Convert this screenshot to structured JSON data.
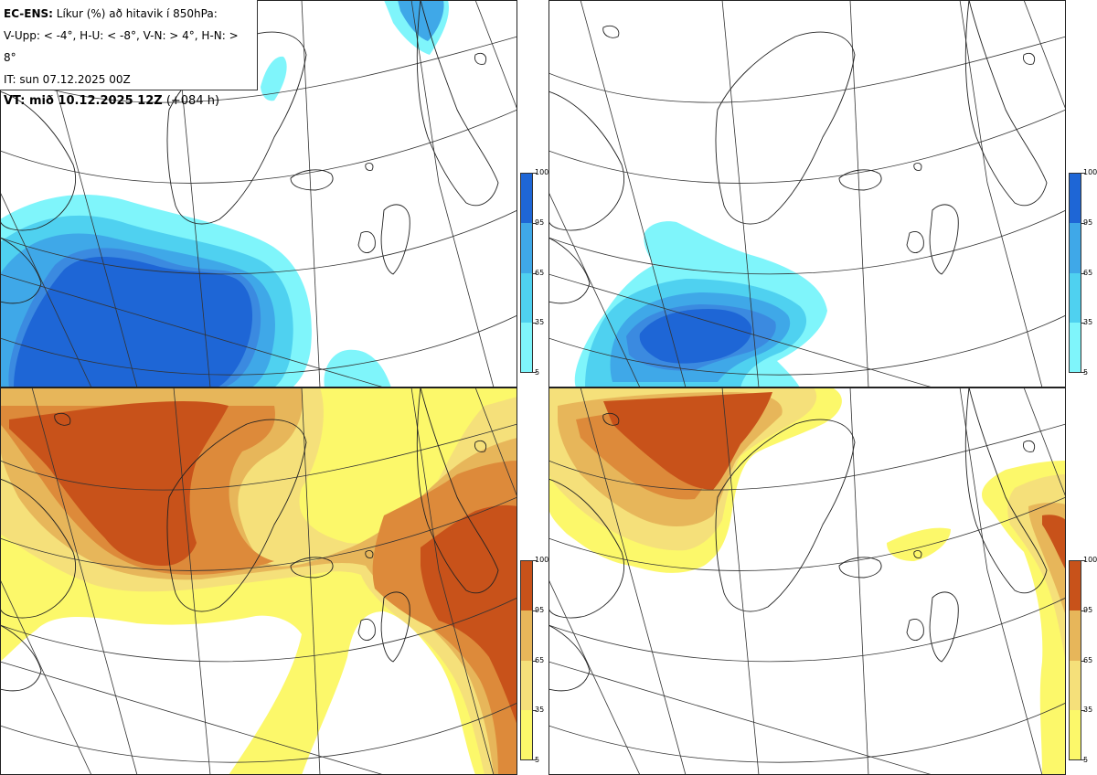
{
  "info": {
    "line1_bold": "EC-ENS:",
    "line1_rest": " Líkur (%) að hitavik í 850hPa:",
    "line2": "V-Upp: < -4°, H-U: < -8°, V-N: > 4°, H-N: > 8°",
    "line3": "IT: sun 07.12.2025 00Z",
    "line4_bold": "VT: mið 10.12.2025 12Z",
    "line4_rest": " (+084 h)"
  },
  "colorbar_labels": [
    "100",
    "95",
    "65",
    "35",
    "5"
  ],
  "colors": {
    "cold_scale": [
      "#7ff5fb",
      "#4fd1f0",
      "#3fa8e8",
      "#3b8ae0",
      "#1e66d6"
    ],
    "warm_scale": [
      "#fcf86a",
      "#f5e07a",
      "#e7b65a",
      "#dd8a3a",
      "#c8521a"
    ],
    "coast": "#222222",
    "grid": "#333333"
  },
  "panels": [
    {
      "id": "top-left",
      "quantity": "V-Upp"
    },
    {
      "id": "top-right",
      "quantity": "H-U"
    },
    {
      "id": "bottom-left",
      "quantity": "V-N"
    },
    {
      "id": "bottom-right",
      "quantity": "H-N"
    }
  ]
}
